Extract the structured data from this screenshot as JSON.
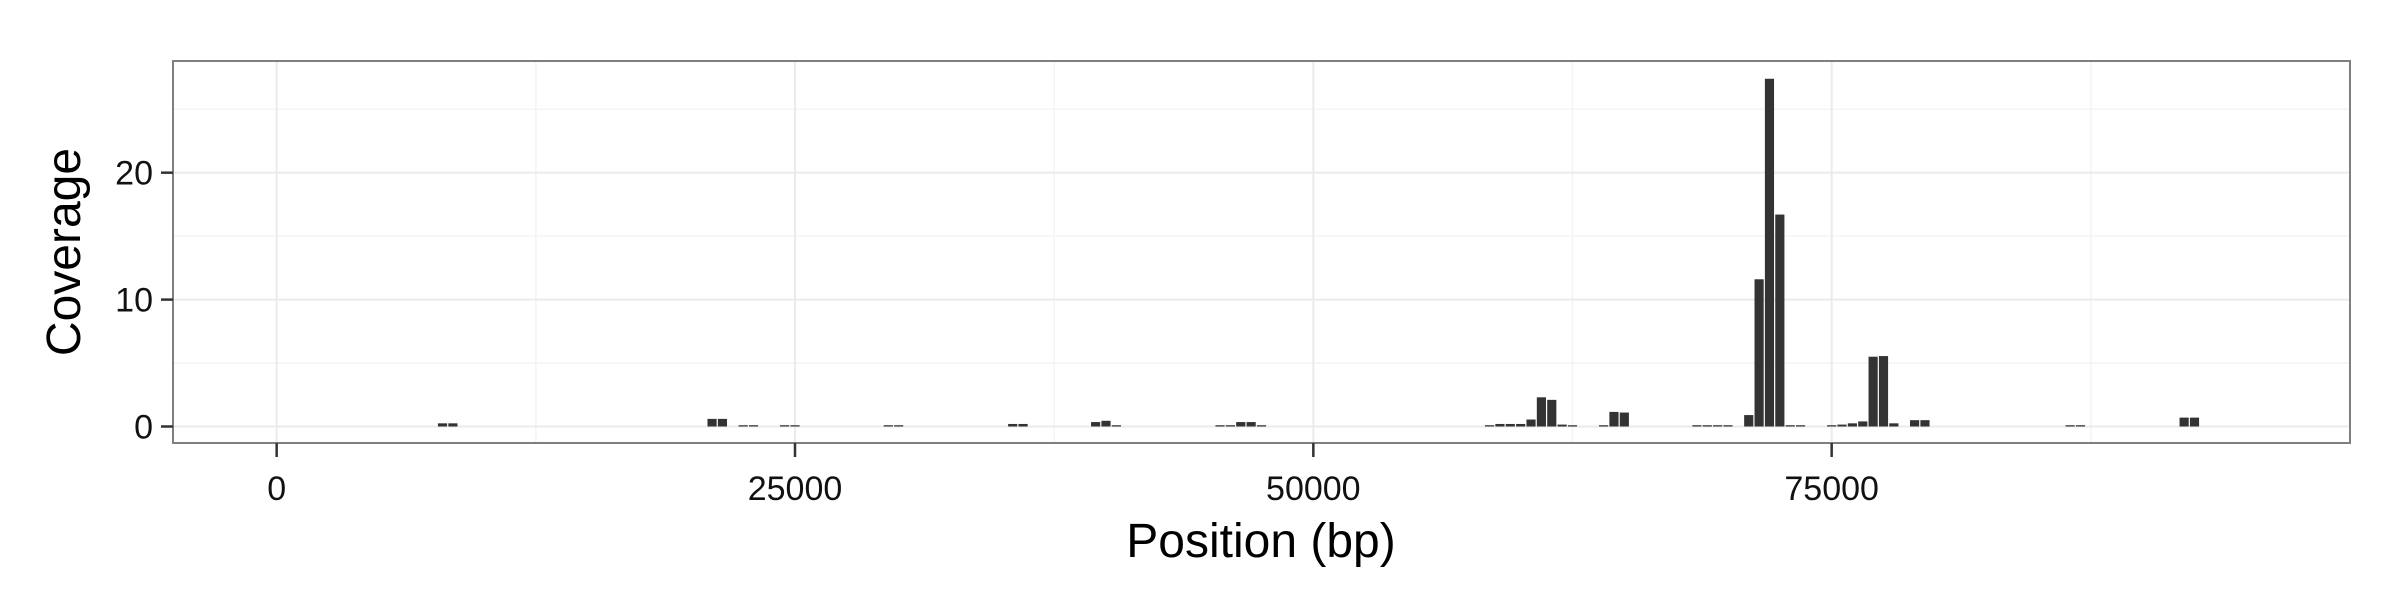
{
  "chart_data": {
    "type": "bar",
    "title": "",
    "xlabel": "Position (bp)",
    "ylabel": "Coverage",
    "xlim": [
      -5000,
      100000
    ],
    "ylim": [
      -1.3,
      28.8
    ],
    "x_ticks": [
      0,
      25000,
      50000,
      75000
    ],
    "x_tick_labels": [
      "0",
      "25000",
      "50000",
      "75000"
    ],
    "y_ticks": [
      0,
      10,
      20
    ],
    "y_tick_labels": [
      "0",
      "10",
      "20"
    ],
    "bin_width": 500,
    "grid": true,
    "legend": "none",
    "bar_color": "#333333",
    "panel_border_color": "#7f7f7f",
    "grid_color": "#ebebeb",
    "x": [
      8000,
      8500,
      21000,
      21500,
      22500,
      23000,
      24500,
      25000,
      29500,
      30000,
      35500,
      36000,
      39500,
      40000,
      40500,
      45500,
      46000,
      46500,
      47000,
      47500,
      58500,
      59000,
      59500,
      60000,
      60500,
      61000,
      61500,
      62000,
      62500,
      64000,
      64500,
      65000,
      68500,
      69000,
      69500,
      70000,
      71000,
      71500,
      72000,
      72500,
      73000,
      73500,
      75000,
      75500,
      76000,
      76500,
      77000,
      77500,
      78000,
      79000,
      79500,
      86500,
      87000,
      92000,
      92500
    ],
    "values": [
      0.25,
      0.25,
      0.6,
      0.6,
      0.1,
      0.1,
      0.1,
      0.1,
      0.1,
      0.1,
      0.2,
      0.2,
      0.35,
      0.45,
      0.1,
      0.1,
      0.1,
      0.35,
      0.35,
      0.1,
      0.1,
      0.2,
      0.2,
      0.2,
      0.55,
      2.3,
      2.1,
      0.15,
      0.1,
      0.1,
      1.15,
      1.1,
      0.1,
      0.1,
      0.1,
      0.1,
      0.9,
      11.6,
      27.4,
      16.7,
      0.1,
      0.1,
      0.1,
      0.15,
      0.25,
      0.4,
      5.5,
      5.55,
      0.25,
      0.5,
      0.5,
      0.1,
      0.1,
      0.7,
      0.7
    ]
  }
}
